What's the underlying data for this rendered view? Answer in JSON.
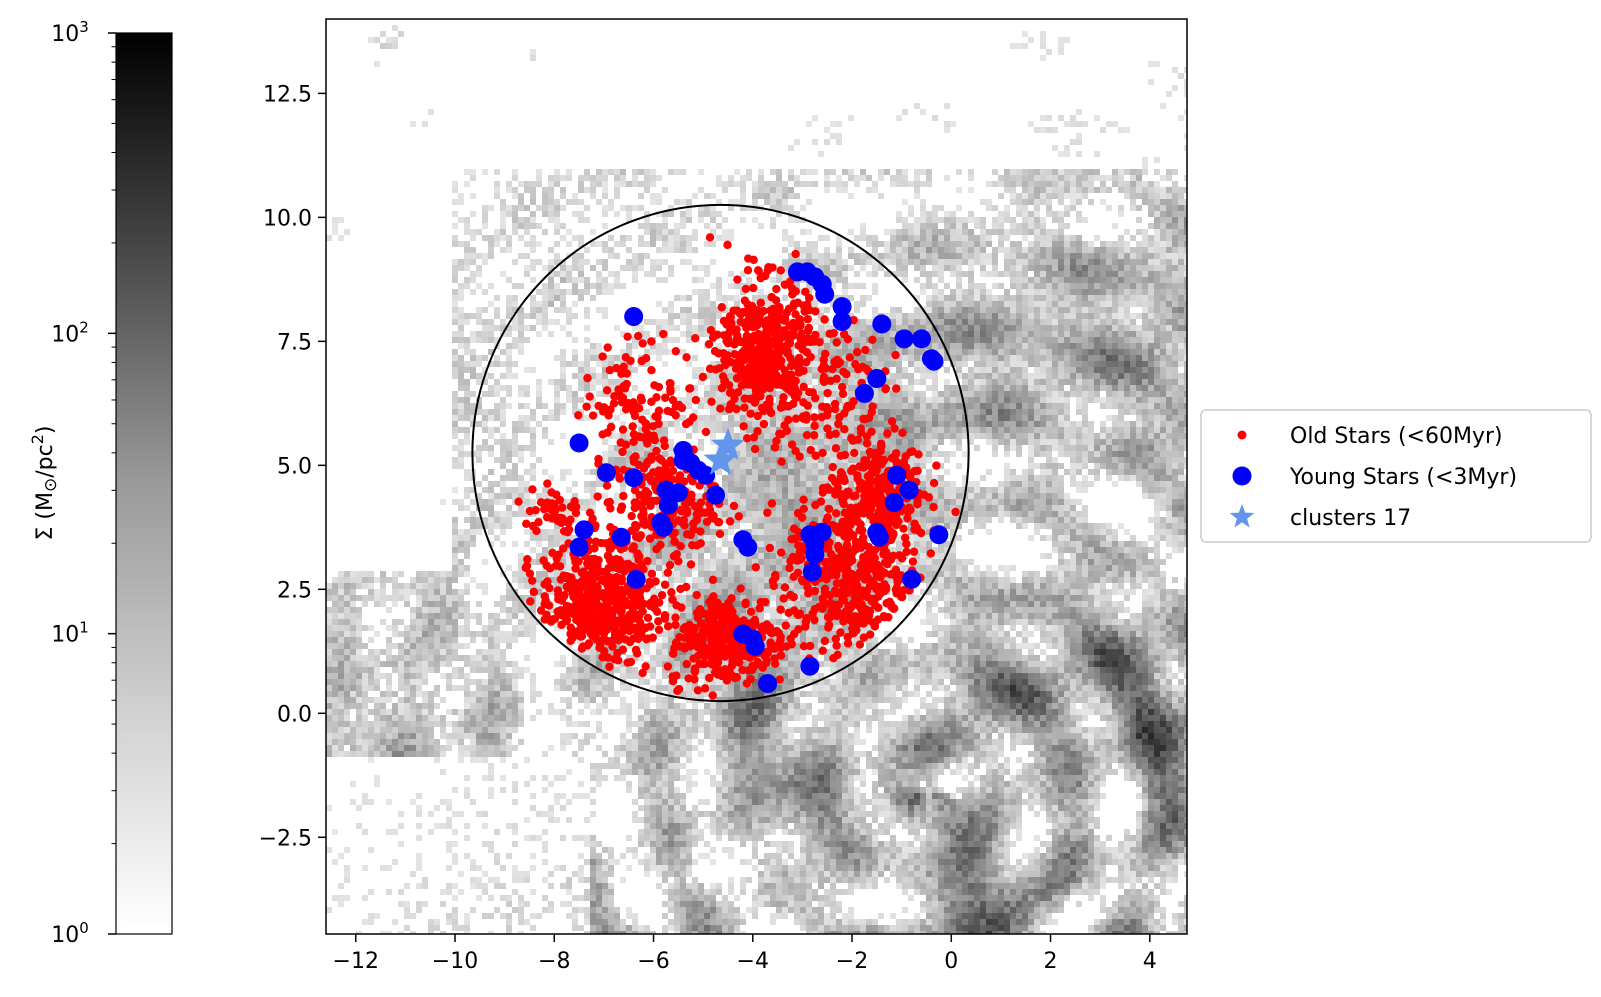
{
  "chart_data": {
    "type": "scatter",
    "title": "",
    "xlabel": "",
    "ylabel": "",
    "xlim": [
      -12.6,
      4.75
    ],
    "ylim": [
      -4.45,
      14.0
    ],
    "x_ticks": [
      -12,
      -10,
      -8,
      -6,
      -4,
      -2,
      0,
      2,
      4
    ],
    "x_tick_labels": [
      "−12",
      "−10",
      "−8",
      "−6",
      "−4",
      "−2",
      "0",
      "2",
      "4"
    ],
    "y_ticks": [
      -2.5,
      0.0,
      2.5,
      5.0,
      7.5,
      10.0,
      12.5
    ],
    "y_tick_labels": [
      "−2.5",
      "0.0",
      "2.5",
      "5.0",
      "7.5",
      "10.0",
      "12.5"
    ],
    "grid": false,
    "legend_position": "outside-right",
    "background_map": {
      "description": "grayscale gas surface density map (log scale)",
      "colormap": "Greys"
    },
    "colorbar": {
      "scale": "log",
      "range": [
        1,
        1000
      ],
      "label": "Σ (M⊙/pc²)",
      "tick_labels": [
        {
          "base": "10",
          "exp": "0",
          "value": 1
        },
        {
          "base": "10",
          "exp": "1",
          "value": 10
        },
        {
          "base": "10",
          "exp": "2",
          "value": 100
        },
        {
          "base": "10",
          "exp": "3",
          "value": 1000
        }
      ]
    },
    "circle": {
      "center": [
        -4.65,
        5.25
      ],
      "radius": 5.0,
      "color": "#000000"
    },
    "series": [
      {
        "name": "Old Stars (<60Myr)",
        "marker": "dot-small",
        "color": "#ff0000",
        "regions": [
          {
            "center": [
              -3.8,
              7.3
            ],
            "spread": [
              0.75,
              1.2
            ],
            "count": 420
          },
          {
            "center": [
              -7.1,
              2.3
            ],
            "spread": [
              1.0,
              1.0
            ],
            "count": 480
          },
          {
            "center": [
              -2.0,
              2.8
            ],
            "spread": [
              1.1,
              1.3
            ],
            "count": 480
          },
          {
            "center": [
              -4.5,
              1.5
            ],
            "spread": [
              1.0,
              0.8
            ],
            "count": 300
          },
          {
            "center": [
              -5.8,
              4.2
            ],
            "spread": [
              0.9,
              0.9
            ],
            "count": 220
          },
          {
            "center": [
              -1.5,
              4.6
            ],
            "spread": [
              0.8,
              0.9
            ],
            "count": 200
          },
          {
            "center": [
              -6.2,
              6.3
            ],
            "spread": [
              1.0,
              1.0
            ],
            "count": 110
          },
          {
            "center": [
              -2.6,
              6.6
            ],
            "spread": [
              1.0,
              1.2
            ],
            "count": 120
          },
          {
            "center": [
              -8.0,
              4.1
            ],
            "spread": [
              0.5,
              0.5
            ],
            "count": 40
          }
        ]
      },
      {
        "name": "Young Stars (<3Myr)",
        "marker": "dot-large",
        "color": "#0000ff",
        "points": [
          [
            -6.4,
            8.0
          ],
          [
            -3.1,
            8.9
          ],
          [
            -2.9,
            8.9
          ],
          [
            -2.75,
            8.8
          ],
          [
            -2.6,
            8.65
          ],
          [
            -2.55,
            8.45
          ],
          [
            -2.2,
            8.2
          ],
          [
            -2.2,
            7.9
          ],
          [
            -1.4,
            7.85
          ],
          [
            -0.95,
            7.55
          ],
          [
            -0.6,
            7.55
          ],
          [
            -0.4,
            7.15
          ],
          [
            -0.35,
            7.1
          ],
          [
            -1.5,
            6.75
          ],
          [
            -1.75,
            6.45
          ],
          [
            -7.5,
            5.45
          ],
          [
            -5.4,
            5.3
          ],
          [
            -5.4,
            5.1
          ],
          [
            -5.25,
            5.05
          ],
          [
            -5.1,
            4.9
          ],
          [
            -4.95,
            4.8
          ],
          [
            -6.95,
            4.85
          ],
          [
            -6.4,
            4.75
          ],
          [
            -5.75,
            4.5
          ],
          [
            -5.5,
            4.45
          ],
          [
            -5.7,
            4.2
          ],
          [
            -4.75,
            4.4
          ],
          [
            -1.1,
            4.8
          ],
          [
            -0.85,
            4.5
          ],
          [
            -1.15,
            4.25
          ],
          [
            -5.85,
            3.85
          ],
          [
            -5.8,
            3.75
          ],
          [
            -7.4,
            3.7
          ],
          [
            -6.65,
            3.55
          ],
          [
            -4.2,
            3.5
          ],
          [
            -4.1,
            3.35
          ],
          [
            -2.85,
            3.6
          ],
          [
            -2.6,
            3.65
          ],
          [
            -2.75,
            3.4
          ],
          [
            -2.75,
            3.2
          ],
          [
            -1.5,
            3.65
          ],
          [
            -1.45,
            3.55
          ],
          [
            -0.25,
            3.6
          ],
          [
            -7.5,
            3.35
          ],
          [
            -6.35,
            2.7
          ],
          [
            -2.8,
            2.85
          ],
          [
            -0.8,
            2.7
          ],
          [
            -4.2,
            1.6
          ],
          [
            -4.0,
            1.5
          ],
          [
            -3.95,
            1.35
          ],
          [
            -2.85,
            0.95
          ],
          [
            -3.7,
            0.6
          ]
        ]
      },
      {
        "name": "clusters 17",
        "marker": "star",
        "color": "#6495ed",
        "points": [
          [
            -4.5,
            5.4
          ],
          [
            -4.65,
            5.1
          ]
        ]
      }
    ]
  },
  "legend": {
    "entries": [
      {
        "label": "Old Stars (<60Myr)",
        "marker": "dot-small",
        "color": "#ff0000"
      },
      {
        "label": "Young Stars (<3Myr)",
        "marker": "dot-large",
        "color": "#0000ff"
      },
      {
        "label": "clusters 17",
        "marker": "star",
        "color": "#6495ed"
      }
    ]
  }
}
